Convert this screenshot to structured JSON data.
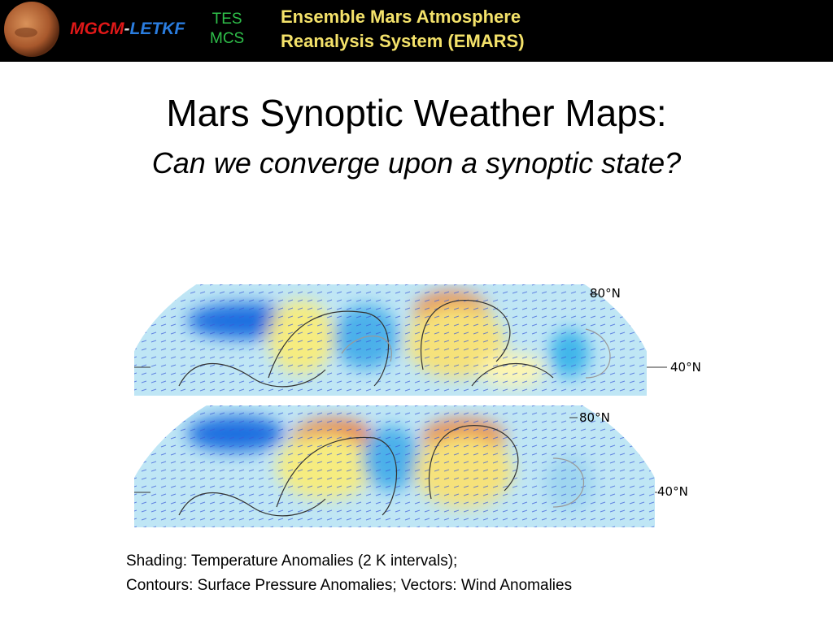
{
  "header": {
    "logo": {
      "mgcm": "MGCM",
      "dash": "-",
      "letkf": "LETKF"
    },
    "instruments": [
      "TES",
      "MCS"
    ],
    "title_lines": [
      "Ensemble Mars Atmosphere",
      "Reanalysis System (EMARS)"
    ]
  },
  "title": "Mars Synoptic Weather Maps:",
  "subtitle": "Can we converge upon a synoptic state?",
  "maps": [
    {
      "labels": [
        "80°N",
        "40°N"
      ]
    },
    {
      "labels": [
        "80°N",
        "40°N"
      ]
    }
  ],
  "caption": [
    "Shading: Temperature Anomalies (2 K intervals);",
    "Contours: Surface Pressure Anomalies; Vectors: Wind Anomalies"
  ]
}
